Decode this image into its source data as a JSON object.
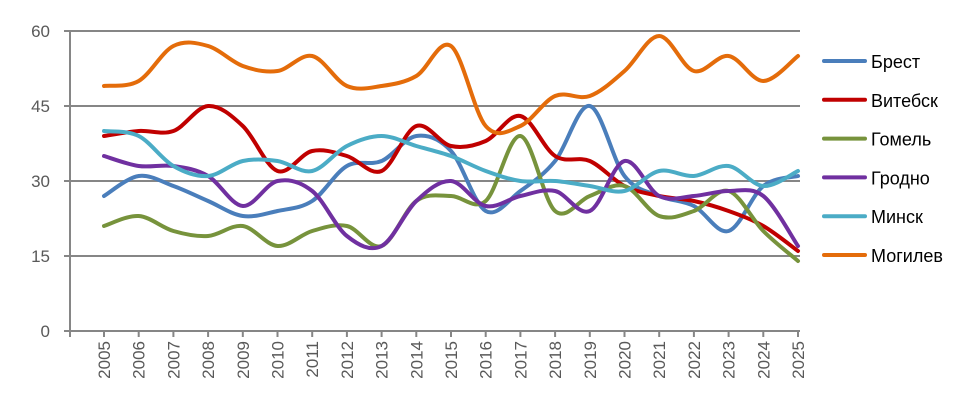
{
  "chart_data": {
    "type": "line",
    "title": "",
    "xlabel": "",
    "ylabel": "",
    "ylim": [
      0,
      60
    ],
    "yticks": [
      0,
      15,
      30,
      45,
      60
    ],
    "grid": true,
    "legend_position": "right",
    "smooth": true,
    "categories": [
      "2005",
      "2006",
      "2007",
      "2008",
      "2009",
      "2010",
      "2011",
      "2012",
      "2013",
      "2014",
      "2015",
      "2016",
      "2017",
      "2018",
      "2019",
      "2020",
      "2021",
      "2022",
      "2023",
      "2024",
      "2025"
    ],
    "series": [
      {
        "name": "Брест",
        "color": "#4A7EBB",
        "values": [
          27,
          31,
          29,
          26,
          23,
          24,
          26,
          33,
          34,
          39,
          36,
          24,
          28,
          34,
          45,
          31,
          27,
          25,
          20,
          29,
          31
        ]
      },
      {
        "name": "Витебск",
        "color": "#C00000",
        "values": [
          39,
          40,
          40,
          45,
          41,
          32,
          36,
          35,
          32,
          41,
          37,
          38,
          43,
          35,
          34,
          29,
          27,
          26,
          24,
          21,
          16
        ]
      },
      {
        "name": "Гомель",
        "color": "#77933C",
        "values": [
          21,
          23,
          20,
          19,
          21,
          17,
          20,
          21,
          17,
          26,
          27,
          26,
          39,
          24,
          27,
          29,
          23,
          24,
          28,
          20,
          14
        ]
      },
      {
        "name": "Гродно",
        "color": "#7030A0",
        "values": [
          35,
          33,
          33,
          31,
          25,
          30,
          28,
          19,
          17,
          26,
          30,
          25,
          27,
          28,
          24,
          34,
          27,
          27,
          28,
          27,
          17
        ]
      },
      {
        "name": "Минск",
        "color": "#4BACC6",
        "values": [
          40,
          39,
          33,
          31,
          34,
          34,
          32,
          37,
          39,
          37,
          35,
          32,
          30,
          30,
          29,
          28,
          32,
          31,
          33,
          29,
          32
        ]
      },
      {
        "name": "Могилев",
        "color": "#E46C0A",
        "values": [
          49,
          50,
          57,
          57,
          53,
          52,
          55,
          49,
          49,
          51,
          57,
          41,
          41,
          47,
          47,
          52,
          59,
          52,
          55,
          50,
          55
        ]
      }
    ]
  }
}
